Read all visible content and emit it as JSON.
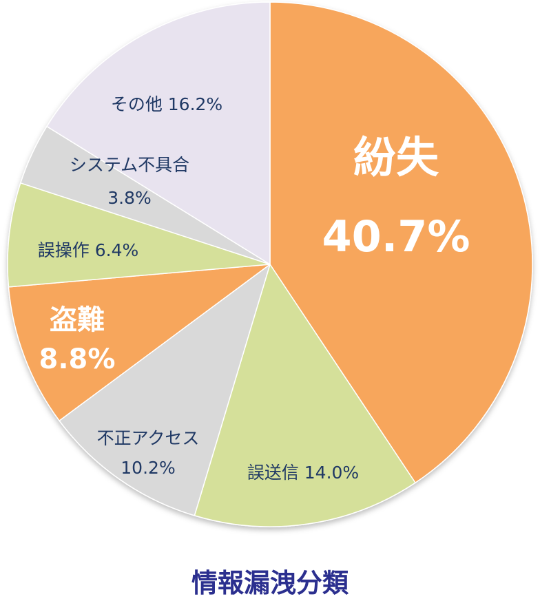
{
  "chart_data": {
    "type": "pie",
    "title": "情報漏洩分類",
    "start_angle_deg": 0,
    "direction": "clockwise",
    "slices": [
      {
        "name": "紛失",
        "value": 40.7,
        "label": "40.7%",
        "color": "#f7a65c",
        "label_style": "big"
      },
      {
        "name": "誤送信",
        "value": 14.0,
        "label": "14.0%",
        "color": "#d5e09a",
        "label_style": "small"
      },
      {
        "name": "不正アクセス",
        "value": 10.2,
        "label": "10.2%",
        "color": "#d9d9d9",
        "label_style": "small"
      },
      {
        "name": "盗難",
        "value": 8.8,
        "label": "8.8%",
        "color": "#f7a65c",
        "label_style": "mid"
      },
      {
        "name": "誤操作",
        "value": 6.4,
        "label": "6.4%",
        "color": "#d5e09a",
        "label_style": "small"
      },
      {
        "name": "システム不具合",
        "value": 3.8,
        "label": "3.8%",
        "color": "#d9d9d9",
        "label_style": "small"
      },
      {
        "name": "その他",
        "value": 16.2,
        "label": "16.2%",
        "color": "#e8e3ef",
        "label_style": "small"
      }
    ]
  }
}
